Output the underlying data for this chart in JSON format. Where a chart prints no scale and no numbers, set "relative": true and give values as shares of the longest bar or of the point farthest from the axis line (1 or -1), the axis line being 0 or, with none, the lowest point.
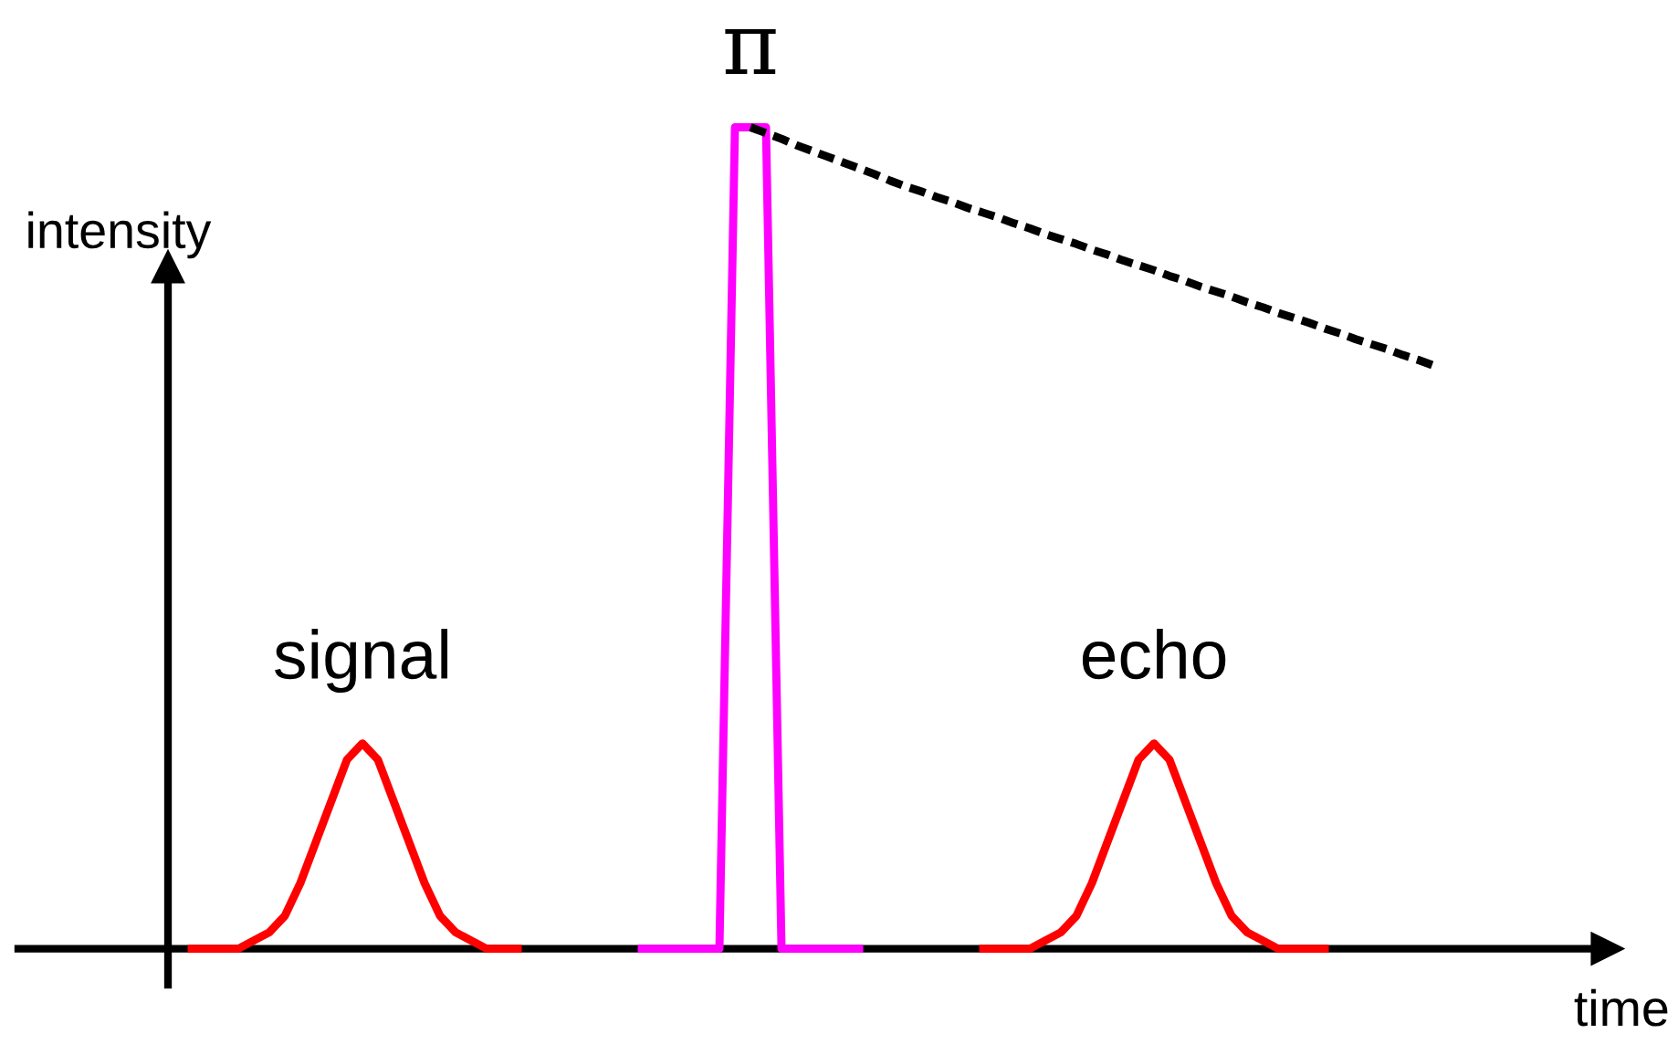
{
  "chart_data": {
    "type": "line",
    "relative": true,
    "xlabel": "time",
    "ylabel": "intensity",
    "marker": "none",
    "categories": [
      null,
      null,
      null,
      null,
      null,
      null,
      null,
      null,
      null,
      null,
      null,
      null,
      null,
      null,
      null,
      null,
      null,
      null,
      null,
      null,
      null,
      null,
      null,
      null,
      null,
      null,
      null,
      null,
      null,
      null,
      null,
      null,
      null,
      null,
      null,
      null,
      null,
      null,
      null,
      null,
      null,
      null,
      null,
      null,
      null,
      null,
      null,
      null,
      null,
      null,
      null,
      null,
      null,
      null,
      null,
      null,
      null,
      null,
      null,
      null,
      null,
      null,
      null,
      null,
      null,
      null,
      null,
      null,
      null,
      null,
      null,
      null,
      null,
      null,
      null,
      null,
      null,
      null,
      null,
      null,
      null
    ],
    "series": [
      {
        "color": "#ff0000",
        "line_style": "solid",
        "values": [
          0,
          0,
          0,
          0,
          0.01,
          0.02,
          0.04,
          0.08,
          0.13,
          0.18,
          0.23,
          0.25,
          0.23,
          0.18,
          0.13,
          0.08,
          0.04,
          0.02,
          0.01,
          0,
          0,
          0,
          null,
          null,
          null,
          null,
          null,
          null,
          null,
          null,
          null,
          null,
          null,
          null,
          null,
          null,
          null,
          null,
          null,
          null,
          null,
          null,
          null,
          null,
          null,
          null,
          null,
          null,
          null,
          null,
          null,
          null,
          null,
          null,
          null,
          null,
          null,
          null,
          null,
          null,
          null,
          null,
          null,
          null,
          null,
          null,
          null,
          null,
          null,
          null,
          null,
          null,
          null,
          null,
          null,
          null,
          null,
          null,
          null,
          null,
          null
        ]
      },
      {
        "color": "#ff00ff",
        "line_style": "solid",
        "values": [
          null,
          null,
          null,
          null,
          null,
          null,
          null,
          null,
          null,
          null,
          null,
          null,
          null,
          null,
          null,
          null,
          null,
          null,
          null,
          null,
          null,
          null,
          null,
          null,
          null,
          null,
          null,
          null,
          null,
          0,
          0,
          0,
          0,
          0,
          0,
          1,
          1,
          1,
          0,
          0,
          0,
          0,
          0,
          0,
          null,
          null,
          null,
          null,
          null,
          null,
          null,
          null,
          null,
          null,
          null,
          null,
          null,
          null,
          null,
          null,
          null,
          null,
          null,
          null,
          null,
          null,
          null,
          null,
          null,
          null,
          null,
          null,
          null,
          null,
          null,
          null,
          null,
          null,
          null,
          null,
          null
        ]
      },
      {
        "color": "#ff0000",
        "line_style": "solid",
        "values": [
          null,
          null,
          null,
          null,
          null,
          null,
          null,
          null,
          null,
          null,
          null,
          null,
          null,
          null,
          null,
          null,
          null,
          null,
          null,
          null,
          null,
          null,
          null,
          null,
          null,
          null,
          null,
          null,
          null,
          null,
          null,
          null,
          null,
          null,
          null,
          null,
          null,
          null,
          null,
          null,
          null,
          null,
          null,
          null,
          null,
          null,
          null,
          null,
          null,
          null,
          null,
          0,
          0,
          0,
          0,
          0.01,
          0.02,
          0.04,
          0.08,
          0.13,
          0.18,
          0.23,
          0.25,
          0.23,
          0.18,
          0.13,
          0.08,
          0.04,
          0.02,
          0.01,
          0,
          0,
          0,
          0,
          null,
          null,
          null,
          null,
          null,
          null,
          null
        ]
      },
      {
        "color": "#000000",
        "line_style": "dashed",
        "values": [
          null,
          null,
          null,
          null,
          null,
          null,
          null,
          null,
          null,
          null,
          null,
          null,
          null,
          null,
          null,
          null,
          null,
          null,
          null,
          null,
          null,
          null,
          null,
          null,
          null,
          null,
          null,
          null,
          null,
          null,
          null,
          null,
          null,
          null,
          null,
          null,
          1,
          0.993,
          0.986,
          0.978,
          0.971,
          0.964,
          0.957,
          0.95,
          0.943,
          0.935,
          0.928,
          0.922,
          0.915,
          0.909,
          0.902,
          0.896,
          0.89,
          0.883,
          0.877,
          0.87,
          0.864,
          0.858,
          0.851,
          0.845,
          0.838,
          0.832,
          0.826,
          0.819,
          0.813,
          0.806,
          0.8,
          0.794,
          0.787,
          0.781,
          0.774,
          0.768,
          0.762,
          0.755,
          0.749,
          0.742,
          0.736,
          0.73,
          0.723,
          0.717,
          0.71
        ]
      }
    ],
    "annotations": [
      "signal",
      "π",
      "echo"
    ]
  }
}
